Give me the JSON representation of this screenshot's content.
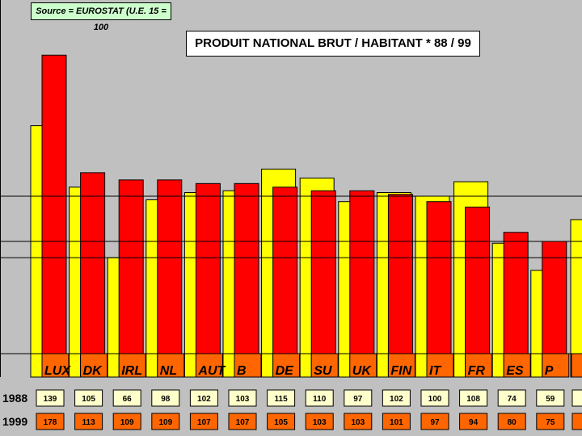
{
  "chart_data": {
    "type": "bar",
    "title": "PRODUIT NATIONAL BRUT / HABITANT * 88 / 99",
    "source": "Source = EUROSTAT (U.E. 15 = 100",
    "categories": [
      "LUX",
      "DK",
      "IRL",
      "NL",
      "AUT",
      "B",
      "DE",
      "SU",
      "UK",
      "FIN",
      "IT",
      "FR",
      "ES",
      "P"
    ],
    "series": [
      {
        "name": "1988",
        "values": [
          139,
          105,
          66,
          98,
          102,
          103,
          115,
          110,
          97,
          102,
          100,
          108,
          74,
          59
        ]
      },
      {
        "name": "1999",
        "values": [
          178,
          113,
          109,
          109,
          107,
          107,
          105,
          103,
          103,
          101,
          97,
          94,
          80,
          75
        ]
      }
    ],
    "reference_lines": [
      100,
      75,
      66
    ],
    "colors": {
      "1988": "#ffff00",
      "1999": "#ff0000",
      "label_box": "#ff6600",
      "background": "#c0c0c0"
    },
    "legend": "none"
  }
}
